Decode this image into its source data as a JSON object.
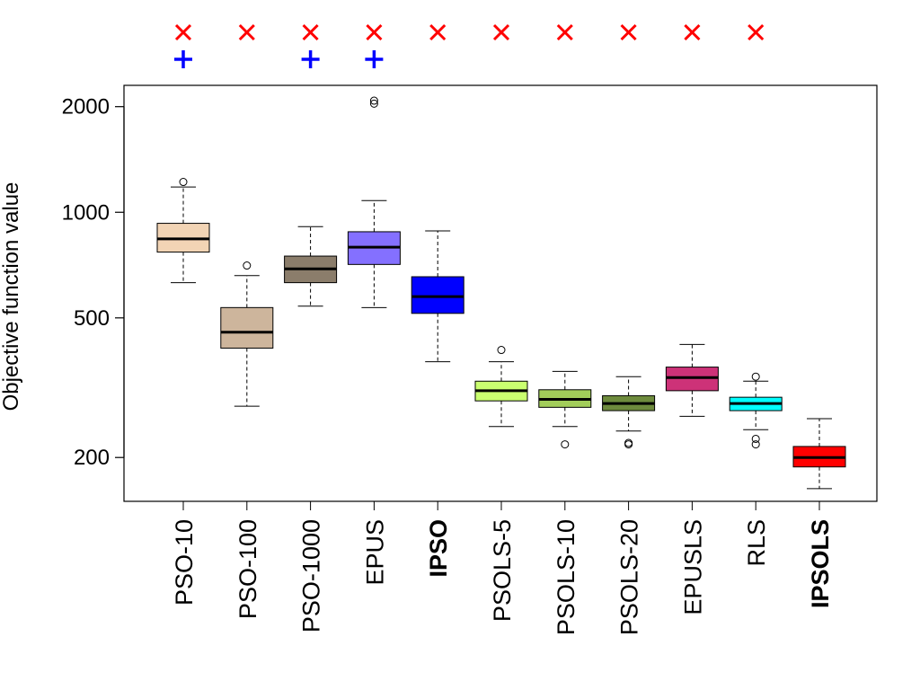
{
  "chart_data": {
    "type": "boxplot",
    "title": "",
    "xlabel": "",
    "ylabel": "Objective function value",
    "yscale": "log",
    "ylim": [
      150,
      2300
    ],
    "yticks": [
      200,
      500,
      1000,
      2000
    ],
    "ytick_labels": [
      "200",
      "500",
      "1000",
      "2000"
    ],
    "categories": [
      {
        "name": "PSO-10",
        "bold": false,
        "color": "#f2d4b5",
        "min": 630,
        "q1": 770,
        "median": 840,
        "q3": 930,
        "max": 1180,
        "outliers": [
          1220
        ],
        "marker_x": true,
        "marker_plus": true
      },
      {
        "name": "PSO-100",
        "bold": false,
        "color": "#cdb59c",
        "min": 280,
        "q1": 410,
        "median": 455,
        "q3": 535,
        "max": 660,
        "outliers": [
          705
        ],
        "marker_x": true,
        "marker_plus": false
      },
      {
        "name": "PSO-1000",
        "bold": false,
        "color": "#8b7d6b",
        "min": 540,
        "q1": 630,
        "median": 690,
        "q3": 750,
        "max": 910,
        "outliers": [],
        "marker_x": true,
        "marker_plus": true
      },
      {
        "name": "EPUS",
        "bold": false,
        "color": "#8470ff",
        "min": 535,
        "q1": 710,
        "median": 795,
        "q3": 880,
        "max": 1080,
        "outliers": [
          2040,
          2080
        ],
        "marker_x": true,
        "marker_plus": true
      },
      {
        "name": "IPSO",
        "bold": true,
        "color": "#0000ff",
        "min": 375,
        "q1": 515,
        "median": 575,
        "q3": 655,
        "max": 885,
        "outliers": [],
        "marker_x": true,
        "marker_plus": false
      },
      {
        "name": "PSOLS-5",
        "bold": false,
        "color": "#caff70",
        "min": 245,
        "q1": 290,
        "median": 310,
        "q3": 330,
        "max": 375,
        "outliers": [
          405
        ],
        "marker_x": true,
        "marker_plus": false
      },
      {
        "name": "PSOLS-10",
        "bold": false,
        "color": "#a2cd5a",
        "min": 245,
        "q1": 278,
        "median": 293,
        "q3": 312,
        "max": 352,
        "outliers": [
          218
        ],
        "marker_x": true,
        "marker_plus": false
      },
      {
        "name": "PSOLS-20",
        "bold": false,
        "color": "#6e8b3d",
        "min": 238,
        "q1": 272,
        "median": 285,
        "q3": 300,
        "max": 340,
        "outliers": [
          218,
          220
        ],
        "marker_x": true,
        "marker_plus": false
      },
      {
        "name": "EPUSLS",
        "bold": false,
        "color": "#cd3278",
        "min": 262,
        "q1": 310,
        "median": 338,
        "q3": 362,
        "max": 420,
        "outliers": [],
        "marker_x": true,
        "marker_plus": false
      },
      {
        "name": "RLS",
        "bold": false,
        "color": "#00ffff",
        "min": 240,
        "q1": 272,
        "median": 285,
        "q3": 297,
        "max": 330,
        "outliers": [
          340,
          226,
          218
        ],
        "marker_x": true,
        "marker_plus": false
      },
      {
        "name": "IPSOLS",
        "bold": true,
        "color": "#ff0000",
        "min": 163,
        "q1": 188,
        "median": 200,
        "q3": 215,
        "max": 258,
        "outliers": [],
        "marker_x": false,
        "marker_plus": false
      }
    ],
    "marker_colors": {
      "x": "#ff0000",
      "plus": "#0000ff"
    },
    "icons": {
      "x": "x-mark-icon",
      "plus": "plus-mark-icon"
    }
  }
}
